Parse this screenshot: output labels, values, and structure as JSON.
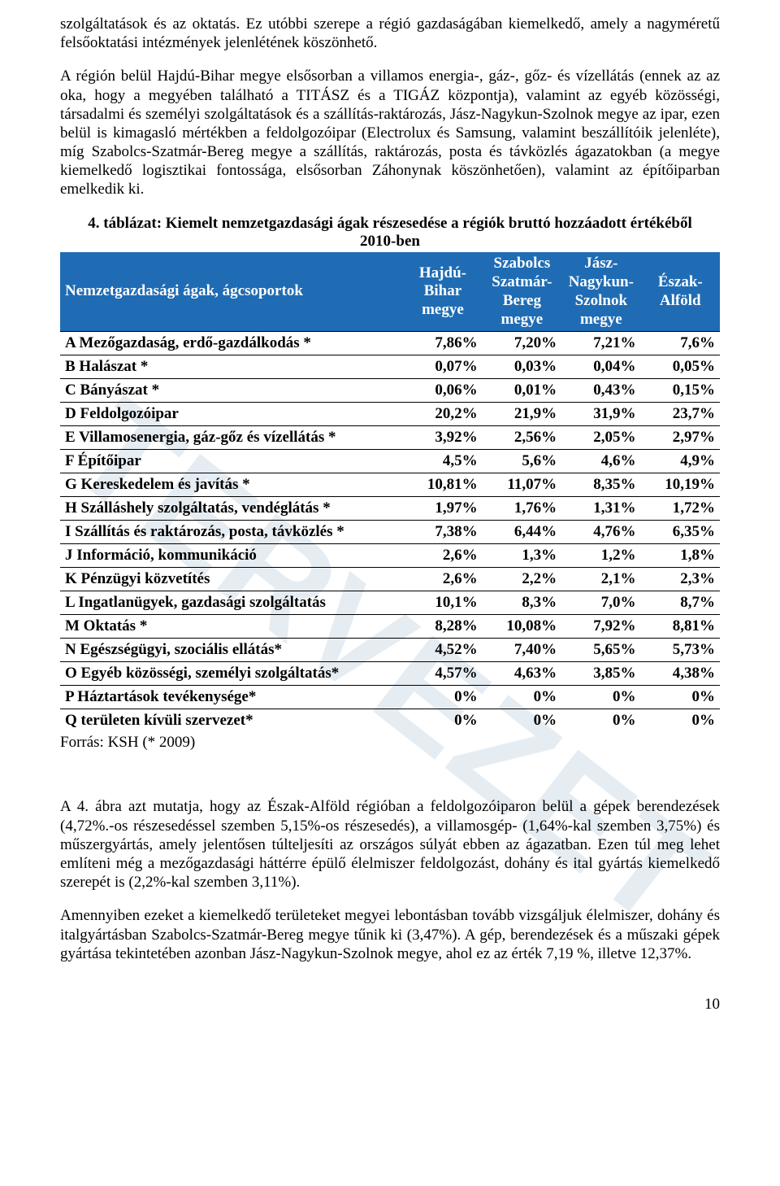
{
  "watermark_text": "TERVEZET",
  "p1": "szolgáltatások és az oktatás. Ez utóbbi szerepe a régió gazdaságában kiemelkedő, amely a nagyméretű felsőoktatási intézmények jelenlétének köszönhető.",
  "p2": "A régión belül Hajdú-Bihar megye elsősorban a villamos energia-, gáz-, gőz- és vízellátás (ennek az az oka, hogy a megyében található a TITÁSZ és a TIGÁZ központja), valamint az egyéb közösségi, társadalmi és személyi szolgáltatások és a szállítás-raktározás, Jász-Nagykun-Szolnok megye az ipar, ezen belül is kimagasló mértékben a feldolgozóipar (Electrolux és Samsung, valamint beszállítóik jelenléte), míg Szabolcs-Szatmár-Bereg megye a szállítás, raktározás, posta és távközlés ágazatokban (a megye kiemelkedő logisztikai fontossága, elsősorban Záhonynak köszönhetően), valamint az építőiparban emelkedik ki.",
  "caption_line1": "4. táblázat: Kiemelt nemzetgazdasági ágak részesedése a régiók bruttó hozzáadott értékéből",
  "caption_line2": "2010-ben",
  "header": {
    "cat": "Nemzetgazdasági ágak, ágcsoportok",
    "c1": "Hajdú-Bihar megye",
    "c2": "Szabolcs Szatmár-Bereg megye",
    "c3": "Jász-Nagykun-Szolnok megye",
    "c4": "Észak-Alföld"
  },
  "rows": [
    {
      "label": "A Mezőgazdaság, erdő-gazdálkodás *",
      "v": [
        "7,86%",
        "7,20%",
        "7,21%",
        "7,6%"
      ]
    },
    {
      "label": "B Halászat *",
      "v": [
        "0,07%",
        "0,03%",
        "0,04%",
        "0,05%"
      ]
    },
    {
      "label": "C Bányászat *",
      "v": [
        "0,06%",
        "0,01%",
        "0,43%",
        "0,15%"
      ]
    },
    {
      "label": "D Feldolgozóipar",
      "v": [
        "20,2%",
        "21,9%",
        "31,9%",
        "23,7%"
      ]
    },
    {
      "label": "E Villamosenergia, gáz-gőz és vízellátás *",
      "v": [
        "3,92%",
        "2,56%",
        "2,05%",
        "2,97%"
      ]
    },
    {
      "label": "F Építőipar",
      "v": [
        "4,5%",
        "5,6%",
        "4,6%",
        "4,9%"
      ]
    },
    {
      "label": "G Kereskedelem és javítás *",
      "v": [
        "10,81%",
        "11,07%",
        "8,35%",
        "10,19%"
      ]
    },
    {
      "label": "H Szálláshely szolgáltatás, vendéglátás *",
      "v": [
        "1,97%",
        "1,76%",
        "1,31%",
        "1,72%"
      ]
    },
    {
      "label": "I Szállítás és raktározás, posta, távközlés *",
      "v": [
        "7,38%",
        "6,44%",
        "4,76%",
        "6,35%"
      ]
    },
    {
      "label": "J Információ, kommunikáció",
      "v": [
        "2,6%",
        "1,3%",
        "1,2%",
        "1,8%"
      ]
    },
    {
      "label": "K Pénzügyi közvetítés",
      "v": [
        "2,6%",
        "2,2%",
        "2,1%",
        "2,3%"
      ]
    },
    {
      "label": "L Ingatlanügyek, gazdasági szolgáltatás",
      "v": [
        "10,1%",
        "8,3%",
        "7,0%",
        "8,7%"
      ]
    },
    {
      "label": "M Oktatás *",
      "v": [
        "8,28%",
        "10,08%",
        "7,92%",
        "8,81%"
      ]
    },
    {
      "label": "N Egészségügyi, szociális ellátás*",
      "v": [
        "4,52%",
        "7,40%",
        "5,65%",
        "5,73%"
      ]
    },
    {
      "label": "O Egyéb közösségi, személyi szolgáltatás*",
      "v": [
        "4,57%",
        "4,63%",
        "3,85%",
        "4,38%"
      ]
    },
    {
      "label": "P Háztartások tevékenysége*",
      "v": [
        "0%",
        "0%",
        "0%",
        "0%"
      ]
    },
    {
      "label": "Q területen kívüli szervezet*",
      "v": [
        "0%",
        "0%",
        "0%",
        "0%"
      ]
    }
  ],
  "source": "Forrás: KSH (* 2009)",
  "p3": "A 4. ábra azt mutatja, hogy az Észak-Alföld régióban a feldolgozóiparon belül a gépek berendezések (4,72%.-os részesedéssel szemben 5,15%-os részesedés), a villamosgép- (1,64%-kal szemben 3,75%) és műszergyártás, amely jelentősen túlteljesíti az országos súlyát ebben az ágazatban. Ezen túl meg lehet említeni még a mezőgazdasági háttérre épülő élelmiszer feldolgozást, dohány és ital gyártás kiemelkedő szerepét is (2,2%-kal szemben 3,11%).",
  "p4": "Amennyiben ezeket a kiemelkedő területeket megyei lebontásban tovább vizsgáljuk élelmiszer, dohány és italgyártásban Szabolcs-Szatmár-Bereg megye tűnik ki (3,47%). A gép, berendezések és a műszaki gépek gyártása tekintetében azonban Jász-Nagykun-Szolnok megye, ahol ez az érték 7,19 %, illetve 12,37%.",
  "page_number": "10",
  "colors": {
    "table_header_bg": "#1f6cb4",
    "table_header_fg": "#ffffff",
    "watermark": "rgba(70,120,160,0.14)"
  },
  "table_type": "table"
}
